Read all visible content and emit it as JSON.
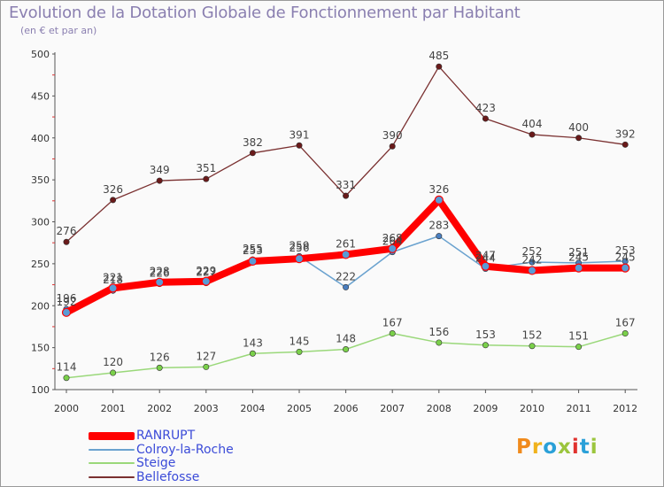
{
  "chart_data": {
    "type": "line",
    "title": "Evolution de la Dotation Globale de Fonctionnement par Habitant",
    "subtitle": "(en € et par an)",
    "xlabel": "",
    "ylabel": "",
    "ylim": [
      100,
      500
    ],
    "yticks": [
      100,
      150,
      200,
      250,
      300,
      350,
      400,
      450,
      500
    ],
    "categories": [
      "2000",
      "2001",
      "2002",
      "2003",
      "2004",
      "2005",
      "2006",
      "2007",
      "2008",
      "2009",
      "2010",
      "2011",
      "2012"
    ],
    "series": [
      {
        "name": "RANRUPT",
        "color": "#ff0000",
        "values": [
          192,
          221,
          228,
          229,
          253,
          256,
          261,
          268,
          326,
          247,
          242,
          245,
          245
        ],
        "labels": [
          "192",
          "221",
          "228",
          "229",
          "253",
          "256",
          "261",
          "268",
          "326",
          "247",
          "242",
          "245",
          "245"
        ]
      },
      {
        "name": "Colroy-la-Roche",
        "color": "#6aa2cf",
        "values": [
          196,
          218,
          226,
          227,
          255,
          259,
          222,
          264,
          283,
          244,
          252,
          251,
          253
        ],
        "labels": [
          "196",
          "218",
          "226",
          "227",
          "255",
          "259",
          "222",
          "264",
          "283",
          "244",
          "252",
          "251",
          "253"
        ]
      },
      {
        "name": "Steige",
        "color": "#9ad87a",
        "values": [
          114,
          120,
          126,
          127,
          143,
          145,
          148,
          167,
          156,
          153,
          152,
          151,
          167
        ],
        "labels": [
          "114",
          "120",
          "126",
          "127",
          "143",
          "145",
          "148",
          "167",
          "156",
          "153",
          "152",
          "151",
          "167"
        ]
      },
      {
        "name": "Bellefosse",
        "color": "#7a3030",
        "values": [
          276,
          326,
          349,
          351,
          382,
          391,
          331,
          390,
          485,
          423,
          404,
          400,
          392
        ],
        "labels": [
          "276",
          "326",
          "349",
          "351",
          "382",
          "391",
          "331",
          "390",
          "485",
          "423",
          "404",
          "400",
          "392"
        ]
      }
    ],
    "legend_position": "bottom-left",
    "grid": false
  },
  "logo": {
    "text": "Proxiti",
    "letter_colors": [
      "#f08a1c",
      "#f0b21c",
      "#2aa0d8",
      "#9bc53d",
      "#e0322e",
      "#2aa0d8",
      "#9bc53d"
    ]
  }
}
